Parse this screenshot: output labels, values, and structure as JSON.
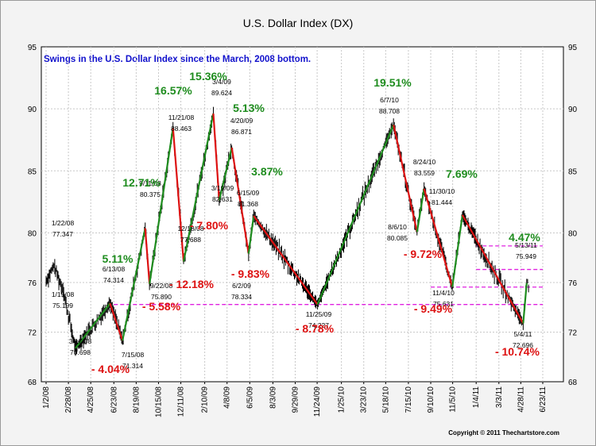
{
  "chart_data": {
    "type": "line",
    "title": "U.S. Dollar Index (DX)",
    "subtitle": "Swings in the U.S. Dollar Index since the March, 2008 bottom.",
    "copyright": "Copyright © 2011 Thechartstore.com",
    "ylim": [
      68,
      95
    ],
    "y_ticks": [
      "68",
      "72",
      "76",
      "80",
      "85",
      "90",
      "95"
    ],
    "y_tick_values": [
      68,
      72,
      76,
      80,
      85,
      90,
      95
    ],
    "x_ticks": [
      "1/2/08",
      "2/28/08",
      "4/25/08",
      "6/23/08",
      "8/19/08",
      "10/15/08",
      "12/11/08",
      "2/10/09",
      "4/8/09",
      "6/5/09",
      "8/3/09",
      "9/29/09",
      "11/24/09",
      "1/25/10",
      "3/23/10",
      "5/18/10",
      "7/15/10",
      "9/10/10",
      "11/5/10",
      "1/4/11",
      "3/3/11",
      "4/28/11",
      "6/23/11"
    ],
    "grid": true,
    "price_color": "#000000",
    "up_color": "#1e8c1e",
    "down_color": "#dd1111",
    "support_color": "#e020e0",
    "swing_points": [
      {
        "date": "3/17/08",
        "value": 70.698
      },
      {
        "date": "6/13/08",
        "value": 74.314
      },
      {
        "date": "7/15/08",
        "value": 71.314
      },
      {
        "date": "9/11/08",
        "value": 80.375
      },
      {
        "date": "9/22/08",
        "value": 75.89
      },
      {
        "date": "11/21/08",
        "value": 88.463
      },
      {
        "date": "12/18/08",
        "value": 77.688
      },
      {
        "date": "3/4/09",
        "value": 89.624
      },
      {
        "date": "3/19/09",
        "value": 82.631
      },
      {
        "date": "4/20/09",
        "value": 86.871
      },
      {
        "date": "6/2/09",
        "value": 78.334
      },
      {
        "date": "6/15/09",
        "value": 81.368
      },
      {
        "date": "11/25/09",
        "value": 74.227
      },
      {
        "date": "6/7/10",
        "value": 88.708
      },
      {
        "date": "8/6/10",
        "value": 80.085
      },
      {
        "date": "8/24/10",
        "value": 83.559
      },
      {
        "date": "11/4/10",
        "value": 75.631
      },
      {
        "date": "11/30/10",
        "value": 81.444
      },
      {
        "date": "5/4/11",
        "value": 72.696
      },
      {
        "date": "5/13/11",
        "value": 75.949
      }
    ],
    "labels": [
      {
        "date": "1/22/08",
        "value": "77.347"
      },
      {
        "date": "1/15/08",
        "value": "75.199"
      },
      {
        "date": "3/17/08",
        "value": "70.698"
      },
      {
        "date": "6/13/08",
        "value": "74.314"
      },
      {
        "date": "7/15/08",
        "value": "71.314"
      },
      {
        "date": "9/11/08",
        "value": "80.375"
      },
      {
        "date": "9/22/08",
        "value": "75.890"
      },
      {
        "date": "11/21/08",
        "value": "88.463"
      },
      {
        "date": "12/18/08",
        "value": "77.688"
      },
      {
        "date": "3/4/09",
        "value": "89.624"
      },
      {
        "date": "3/19/09",
        "value": "82.631"
      },
      {
        "date": "4/20/09",
        "value": "86.871"
      },
      {
        "date": "6/2/09",
        "value": "78.334"
      },
      {
        "date": "6/15/09",
        "value": "81.368"
      },
      {
        "date": "11/25/09",
        "value": "74.227"
      },
      {
        "date": "6/7/10",
        "value": "88.708"
      },
      {
        "date": "8/6/10",
        "value": "80.085"
      },
      {
        "date": "8/24/10",
        "value": "83.559"
      },
      {
        "date": "11/4/10",
        "value": "75.631"
      },
      {
        "date": "11/30/10",
        "value": "81.444"
      },
      {
        "date": "5/4/11",
        "value": "72.696"
      },
      {
        "date": "5/13/11",
        "value": "75.949"
      }
    ],
    "swing_percentages": [
      {
        "text": "5.11%",
        "direction": "up"
      },
      {
        "text": "- 4.04%",
        "direction": "down"
      },
      {
        "text": "12.71%",
        "direction": "up"
      },
      {
        "text": "- 5.58%",
        "direction": "down"
      },
      {
        "text": "16.57%",
        "direction": "up"
      },
      {
        "text": "- 12.18%",
        "direction": "down"
      },
      {
        "text": "15.36%",
        "direction": "up"
      },
      {
        "text": "- 7.80%",
        "direction": "down"
      },
      {
        "text": "5.13%",
        "direction": "up"
      },
      {
        "text": "- 9.83%",
        "direction": "down"
      },
      {
        "text": "3.87%",
        "direction": "up"
      },
      {
        "text": "- 8.78%",
        "direction": "down"
      },
      {
        "text": "19.51%",
        "direction": "up"
      },
      {
        "text": "- 9.72%",
        "direction": "down"
      },
      {
        "text": "- 9.49%",
        "direction": "down"
      },
      {
        "text": "7.69%",
        "direction": "up"
      },
      {
        "text": "- 10.74%",
        "direction": "down"
      },
      {
        "text": "4.47%",
        "direction": "up"
      }
    ]
  }
}
